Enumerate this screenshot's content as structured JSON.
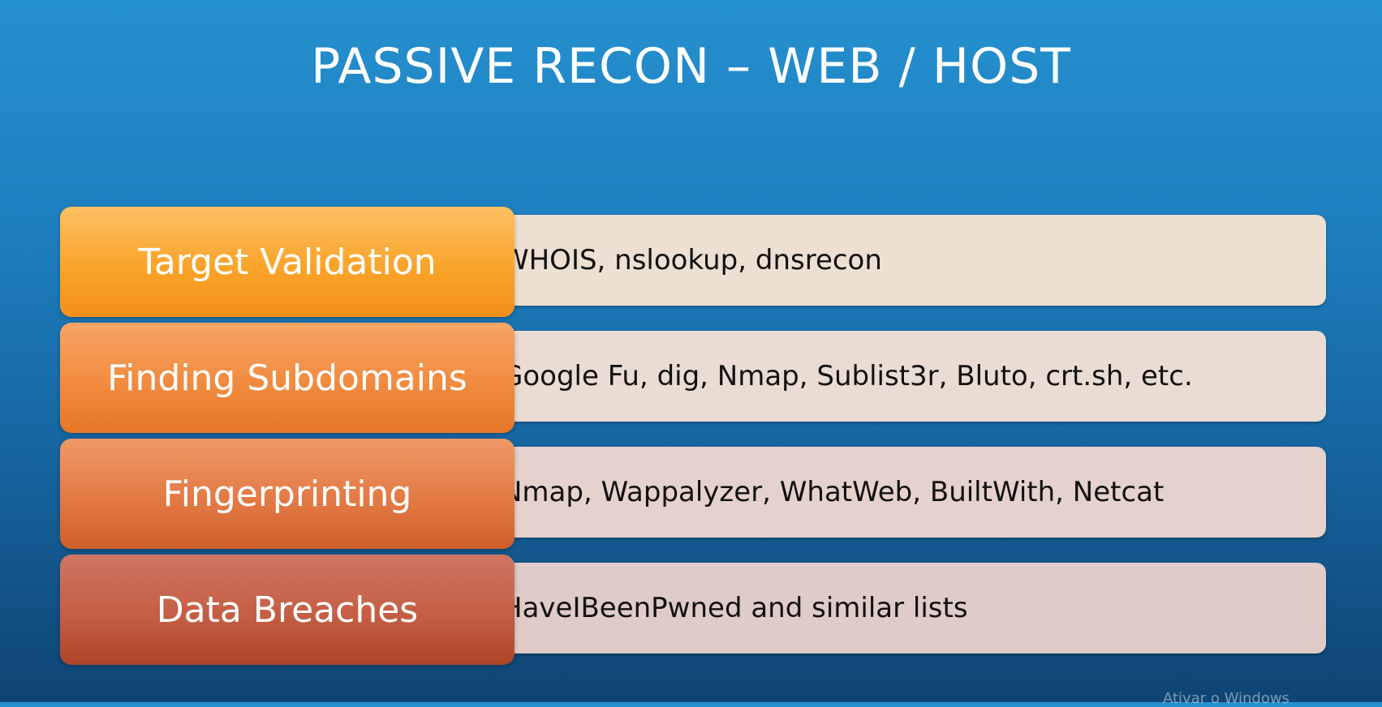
{
  "slide": {
    "title": "PASSIVE RECON – WEB / HOST"
  },
  "rows": [
    {
      "label": "Target Validation",
      "bullet": "•",
      "detail": "WHOIS, nslookup, dnsrecon"
    },
    {
      "label": "Finding Subdomains",
      "bullet": "•",
      "detail": "Google Fu, dig, Nmap, Sublist3r, Bluto, crt.sh, etc."
    },
    {
      "label": "Fingerprinting",
      "bullet": "•",
      "detail": "Nmap, Wappalyzer, WhatWeb, BuiltWith, Netcat"
    },
    {
      "label": "Data Breaches",
      "bullet": "•",
      "detail": "HaveIBeenPwned and similar lists"
    }
  ],
  "watermark": "Ativar o Windows",
  "colors": {
    "background_top": "#2590cf",
    "background_bottom": "#0f4473",
    "label_1": "#f9a42a",
    "label_2": "#f18b3f",
    "label_3": "#e37a45",
    "label_4": "#c45e44",
    "detail_bar": "#ede0d2"
  }
}
